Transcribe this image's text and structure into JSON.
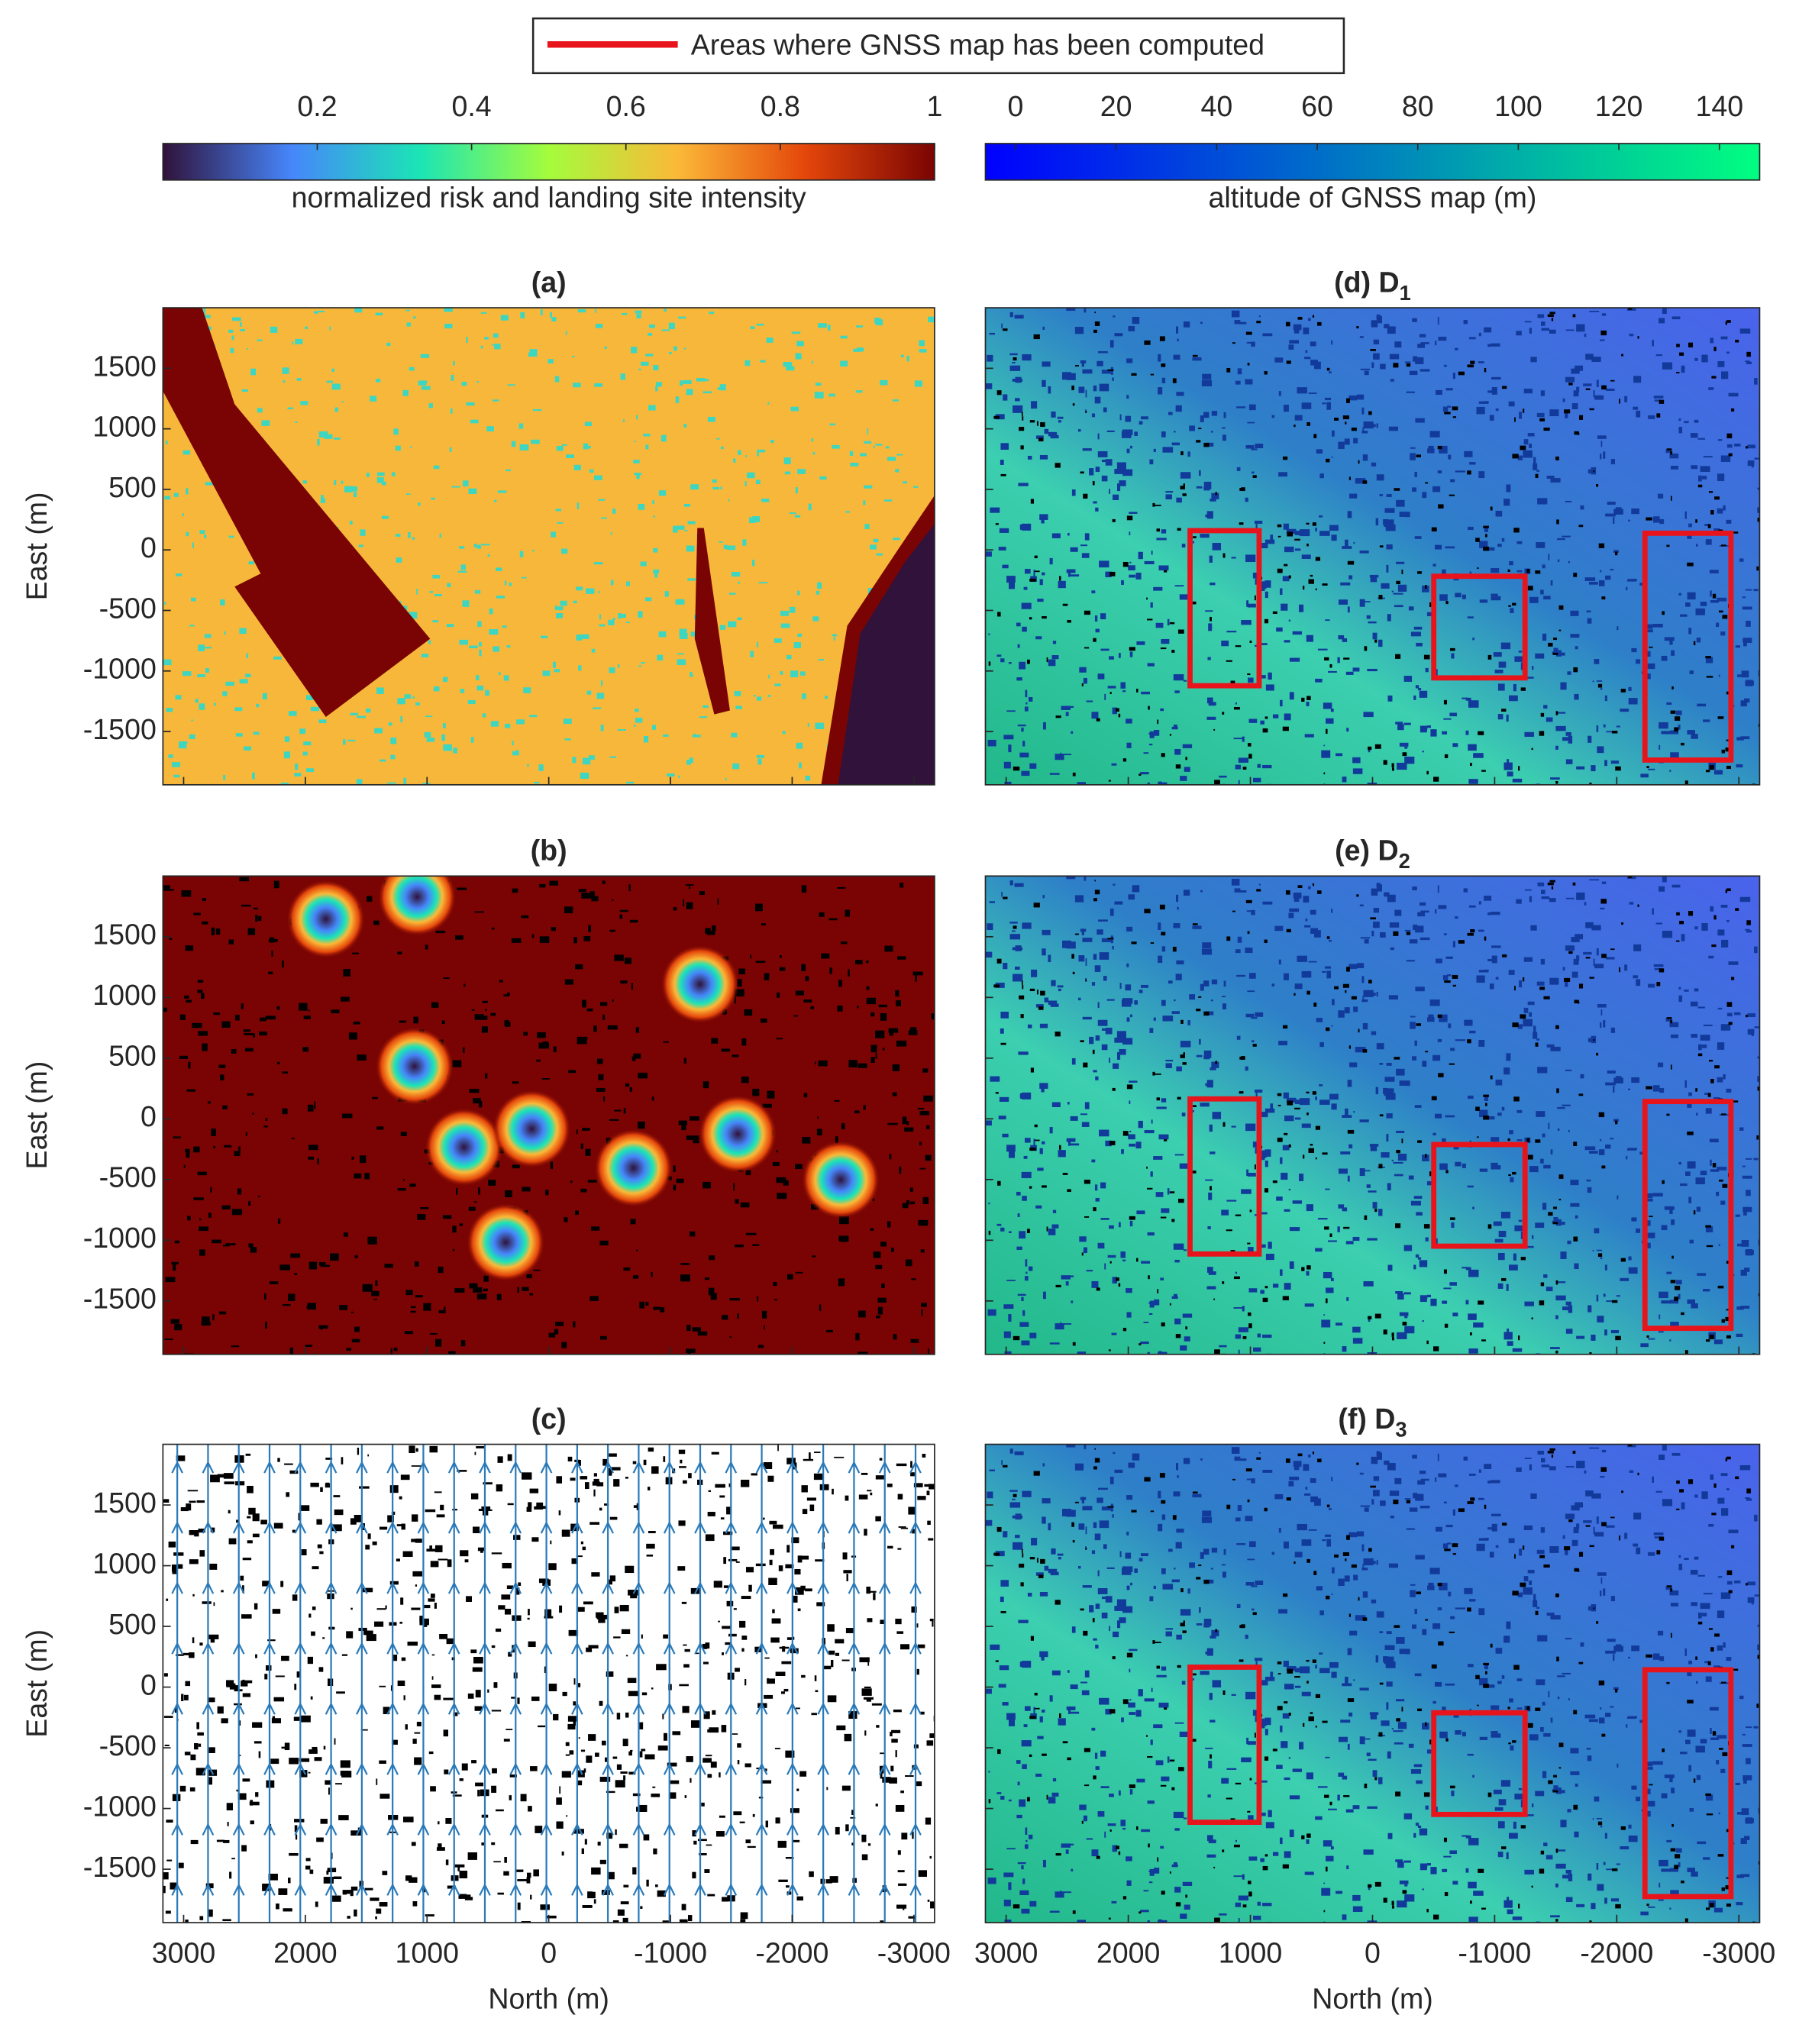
{
  "legend": {
    "label": "Areas where GNSS map has been computed",
    "color": "#e8141b"
  },
  "colorbars": [
    {
      "label": "normalized risk and landing site intensity",
      "lim": [
        0,
        1
      ],
      "ticks": [
        0.2,
        0.4,
        0.6,
        0.8,
        1
      ],
      "colors": [
        "#30123b",
        "#4686fb",
        "#1be5b5",
        "#a4fc3c",
        "#fbb938",
        "#e4460a",
        "#7a0403"
      ]
    },
    {
      "label": "altitude of GNSS map (m)",
      "lim": [
        -6,
        148
      ],
      "ticks": [
        0,
        20,
        40,
        60,
        80,
        100,
        120,
        140
      ],
      "colors": [
        "#0000ff",
        "#00ff80"
      ]
    }
  ],
  "axes": {
    "xlabel": "North (m)",
    "ylabel": "East (m)",
    "xlim": [
      3170,
      -3170
    ],
    "ylim": [
      -1940,
      2000
    ],
    "xticks": [
      3000,
      2000,
      1000,
      0,
      -1000,
      -2000,
      -3000
    ],
    "yticks": [
      -1500,
      -1000,
      -500,
      0,
      500,
      1000,
      1500
    ]
  },
  "panels": [
    {
      "title": "(a)"
    },
    {
      "title": "(b)"
    },
    {
      "title": "(c)"
    },
    {
      "title": "(d) D",
      "title_sub": "1"
    },
    {
      "title": "(e) D",
      "title_sub": "2"
    },
    {
      "title": "(f) D",
      "title_sub": "3"
    }
  ]
}
